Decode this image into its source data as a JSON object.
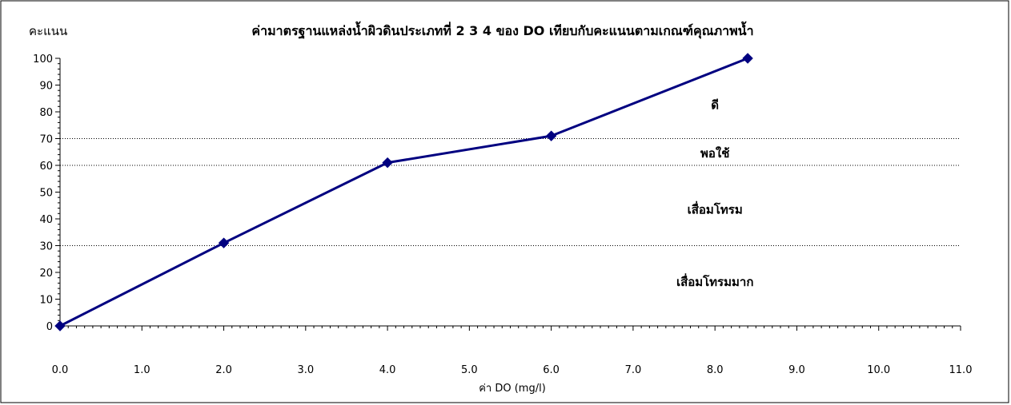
{
  "chart_data": {
    "type": "line",
    "title": "ค่ามาตรฐานแหล่งน้ำผิวดินประเภทที่ 2 3 4 ของ DO เทียบกับคะแนนตามเกณฑ์คุณภาพน้ำ",
    "ylabel": "คะแนน",
    "xlabel": "ค่า DO (mg/l)",
    "xlim": [
      0,
      11
    ],
    "ylim": [
      0,
      100
    ],
    "x_ticks": [
      "0.0",
      "1.0",
      "2.0",
      "3.0",
      "4.0",
      "5.0",
      "6.0",
      "7.0",
      "8.0",
      "9.0",
      "10.0",
      "11.0"
    ],
    "y_ticks": [
      "0",
      "10",
      "20",
      "30",
      "40",
      "50",
      "60",
      "70",
      "80",
      "90",
      "100"
    ],
    "series": [
      {
        "x": [
          0,
          2,
          4,
          6,
          8.4
        ],
        "y": [
          0,
          31,
          61,
          71,
          100
        ],
        "color": "#000080"
      }
    ],
    "thresholds": [
      30,
      60,
      70
    ],
    "zones": [
      {
        "label": "ดี",
        "x": 8.0,
        "y": 81
      },
      {
        "label": "พอใช้",
        "x": 8.0,
        "y": 63
      },
      {
        "label": "เสื่อมโทรม",
        "x": 8.0,
        "y": 42
      },
      {
        "label": "เสื่อมโทรมมาก",
        "x": 8.0,
        "y": 15
      }
    ],
    "grid": false
  }
}
